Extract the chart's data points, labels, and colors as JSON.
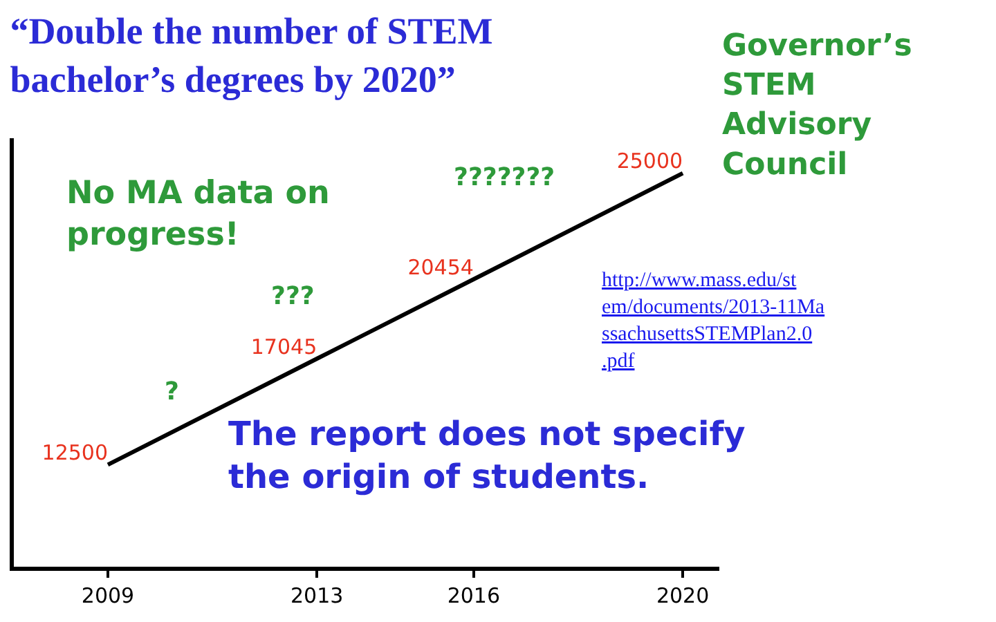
{
  "chart_data": {
    "type": "line",
    "title": "“Double the number of STEM bachelor’s degrees by 2020”",
    "x": [
      2009,
      2013,
      2016,
      2020
    ],
    "series": [
      {
        "color": "#000000",
        "values": [
          12500,
          17045,
          20454,
          25000
        ]
      }
    ],
    "data_labels": true,
    "xlim": [
      2007.2,
      2020.7
    ],
    "xticks": [
      2009,
      2013,
      2016,
      2020
    ],
    "tick_labels": "x",
    "marker": "none",
    "line_style": "solid",
    "annotations": [
      "?",
      "???",
      "???????",
      "No MA data on progress!",
      "Governor’s STEM Advisory Council",
      "http://www.mass.edu/stem/documents/2013-11MassachusettsSTEMPlan2.0.pdf",
      "The report does not specify the origin of students."
    ]
  }
}
